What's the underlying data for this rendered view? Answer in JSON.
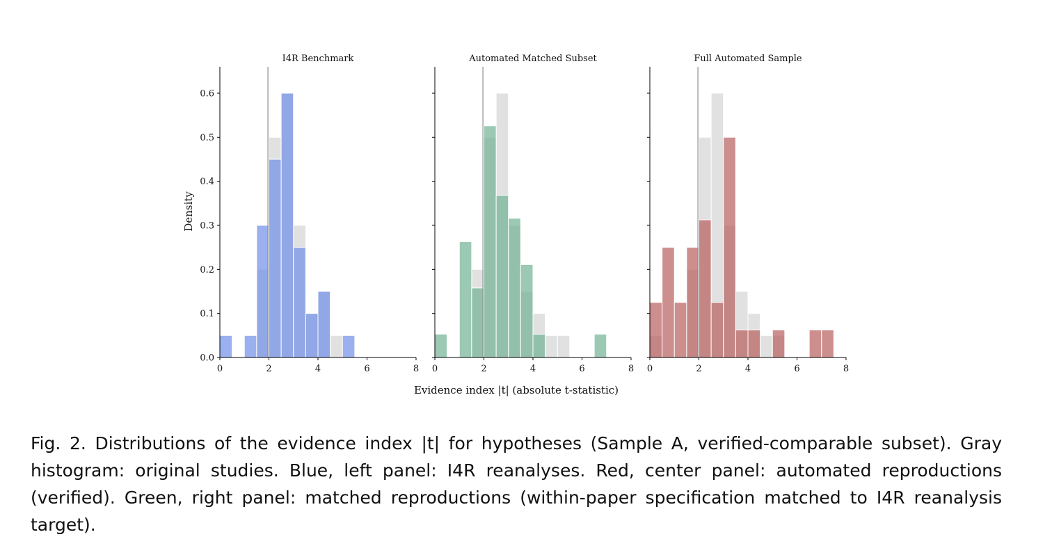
{
  "figure": {
    "ylabel": "Density",
    "xlabel": "Evidence index |t| (absolute t-statistic)",
    "caption": {
      "label": "Fig. 2.",
      "text": "Distributions of the evidence index |t| for hypotheses (Sample A, verified-comparable subset). Gray histogram: original studies. Blue, left panel: I4R reanalyses. Red, center panel: automated reproductions (verified). Green, right panel: matched reproductions (within-paper specification matched to I4R reanalysis target)."
    }
  },
  "chart_data": [
    {
      "type": "bar",
      "title": "I4R Benchmark",
      "xlim": [
        0,
        8
      ],
      "ylim": [
        0,
        0.66
      ],
      "xticks": [
        0,
        2,
        4,
        6,
        8
      ],
      "yticks": [
        0.0,
        0.1,
        0.2,
        0.3,
        0.4,
        0.5,
        0.6
      ],
      "reference_line_x": 1.96,
      "bin_width": 0.5,
      "series": [
        {
          "name": "",
          "color": "#d9d9d9",
          "bins": [
            [
              1.5,
              0.2
            ],
            [
              2.0,
              0.5
            ],
            [
              2.5,
              0.6
            ],
            [
              3.0,
              0.3
            ],
            [
              3.5,
              0.1
            ],
            [
              4.0,
              0.15
            ],
            [
              4.5,
              0.05
            ]
          ]
        },
        {
          "name": "",
          "color": "#6f8ee8",
          "bins": [
            [
              0.0,
              0.05
            ],
            [
              1.0,
              0.05
            ],
            [
              1.5,
              0.3
            ],
            [
              2.0,
              0.45
            ],
            [
              2.5,
              0.6
            ],
            [
              3.0,
              0.25
            ],
            [
              3.5,
              0.1
            ],
            [
              4.0,
              0.15
            ],
            [
              5.0,
              0.05
            ]
          ]
        }
      ]
    },
    {
      "type": "bar",
      "title": "Automated Matched Subset",
      "xlim": [
        0,
        8
      ],
      "ylim": [
        0,
        0.66
      ],
      "xticks": [
        0,
        2,
        4,
        6,
        8
      ],
      "yticks": [
        0.0,
        0.1,
        0.2,
        0.3,
        0.4,
        0.5,
        0.6
      ],
      "reference_line_x": 1.96,
      "bin_width": 0.5,
      "series": [
        {
          "name": "",
          "color": "#d9d9d9",
          "bins": [
            [
              1.5,
              0.2
            ],
            [
              2.0,
              0.5
            ],
            [
              2.5,
              0.6
            ],
            [
              3.0,
              0.3
            ],
            [
              3.5,
              0.15
            ],
            [
              4.0,
              0.1
            ],
            [
              4.5,
              0.05
            ],
            [
              5.0,
              0.05
            ]
          ]
        },
        {
          "name": "",
          "color": "#72b294",
          "bins": [
            [
              0.0,
              0.053
            ],
            [
              1.0,
              0.263
            ],
            [
              1.5,
              0.158
            ],
            [
              2.0,
              0.526
            ],
            [
              2.5,
              0.368
            ],
            [
              3.0,
              0.316
            ],
            [
              3.5,
              0.211
            ],
            [
              4.0,
              0.053
            ],
            [
              6.5,
              0.053
            ]
          ]
        }
      ]
    },
    {
      "type": "bar",
      "title": "Full Automated Sample",
      "xlim": [
        0,
        8
      ],
      "ylim": [
        0,
        0.66
      ],
      "xticks": [
        0,
        2,
        4,
        6,
        8
      ],
      "yticks": [
        0.0,
        0.1,
        0.2,
        0.3,
        0.4,
        0.5,
        0.6
      ],
      "reference_line_x": 1.96,
      "bin_width": 0.5,
      "series": [
        {
          "name": "",
          "color": "#d9d9d9",
          "bins": [
            [
              0.0,
              0.05
            ],
            [
              1.5,
              0.2
            ],
            [
              2.0,
              0.5
            ],
            [
              2.5,
              0.6
            ],
            [
              3.0,
              0.3
            ],
            [
              3.5,
              0.15
            ],
            [
              4.0,
              0.1
            ],
            [
              4.5,
              0.05
            ],
            [
              5.0,
              0.05
            ]
          ]
        },
        {
          "name": "",
          "color": "#b85e5e",
          "bins": [
            [
              0.0,
              0.125
            ],
            [
              0.5,
              0.25
            ],
            [
              1.0,
              0.125
            ],
            [
              1.5,
              0.25
            ],
            [
              2.0,
              0.3125
            ],
            [
              2.5,
              0.125
            ],
            [
              3.0,
              0.5
            ],
            [
              3.5,
              0.0625
            ],
            [
              4.0,
              0.0625
            ],
            [
              5.0,
              0.0625
            ],
            [
              6.5,
              0.0625
            ],
            [
              7.0,
              0.0625
            ]
          ]
        }
      ]
    }
  ]
}
